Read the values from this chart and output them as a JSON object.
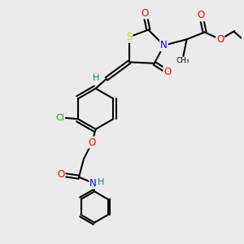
{
  "bg_color": "#ebebeb",
  "atom_colors": {
    "S": "#cccc00",
    "N": "#0000ff",
    "O": "#ff0000",
    "Cl": "#00bb00",
    "H": "#008080",
    "C": "#000000"
  },
  "bond_color": "#000000"
}
